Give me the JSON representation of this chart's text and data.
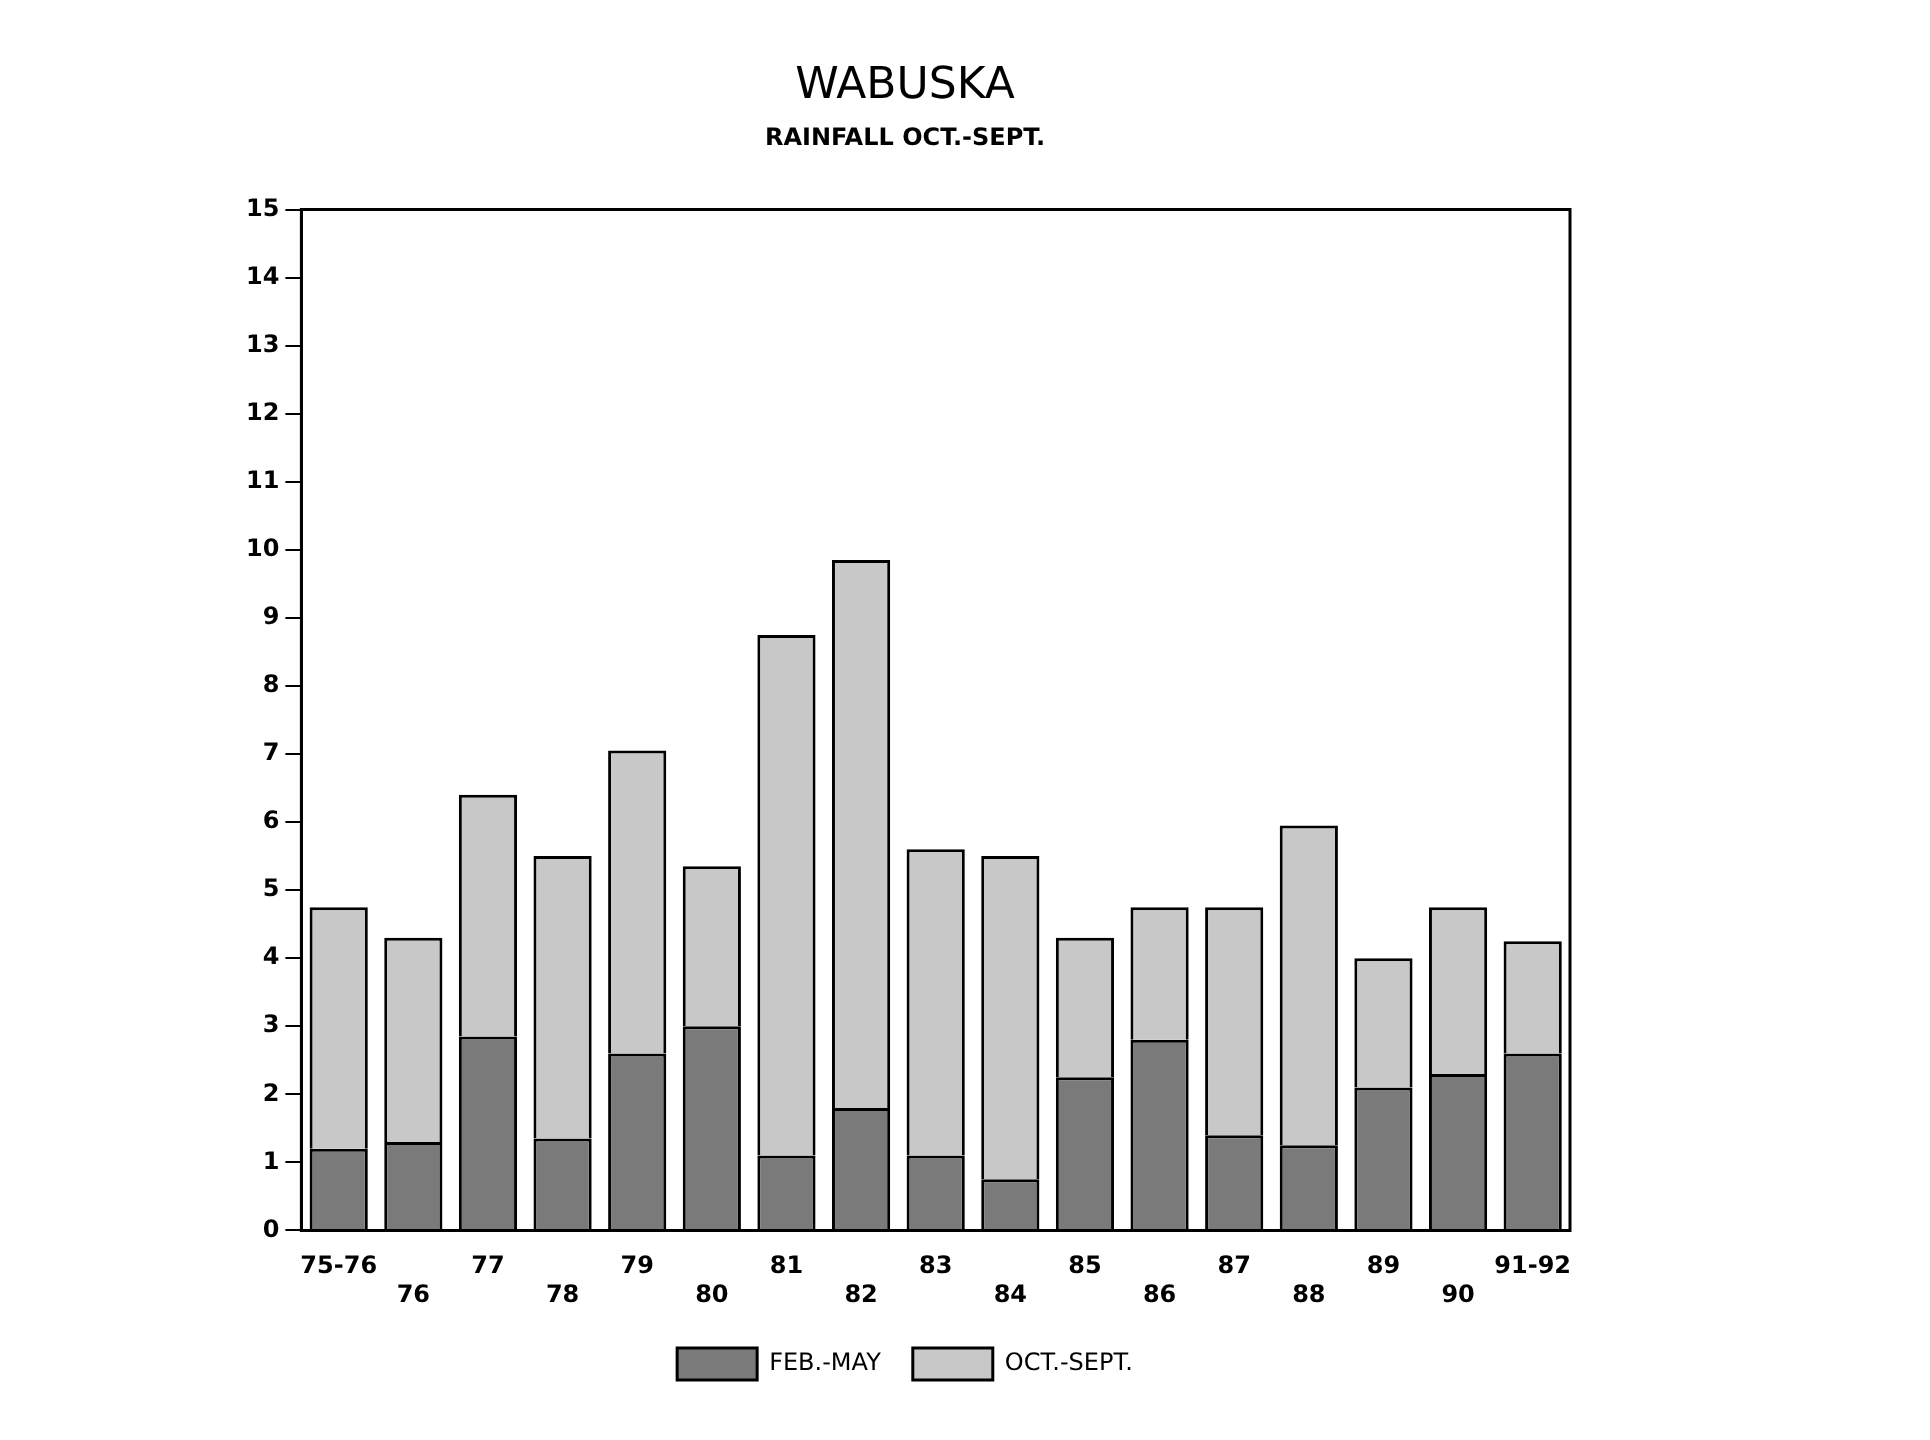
{
  "chart_data": {
    "type": "bar",
    "title": "WABUSKA",
    "subtitle": "RAINFALL OCT.-SEPT.",
    "categories": [
      "75-76",
      "76",
      "77",
      "78",
      "79",
      "80",
      "81",
      "82",
      "83",
      "84",
      "85",
      "86",
      "87",
      "88",
      "89",
      "90",
      "91-92"
    ],
    "stacked": true,
    "series": [
      {
        "name": "FEB.-MAY",
        "color": "#7a7a7a",
        "values": [
          1.2,
          1.3,
          2.85,
          1.35,
          2.6,
          3.0,
          1.1,
          1.8,
          1.1,
          0.75,
          2.25,
          2.8,
          1.4,
          1.25,
          2.1,
          2.3,
          2.6
        ]
      },
      {
        "name": "OCT.-SEPT.",
        "color": "#c8c8c8",
        "values": [
          3.55,
          3.0,
          3.55,
          4.15,
          4.45,
          2.35,
          7.65,
          8.05,
          4.5,
          4.75,
          2.05,
          1.95,
          3.35,
          4.7,
          1.9,
          2.45,
          1.65
        ]
      }
    ],
    "ylim": [
      0,
      15
    ],
    "yticks": [
      0,
      1,
      2,
      3,
      4,
      5,
      6,
      7,
      8,
      9,
      10,
      11,
      12,
      13,
      14,
      15
    ],
    "grid": false,
    "legend": "bottom"
  }
}
